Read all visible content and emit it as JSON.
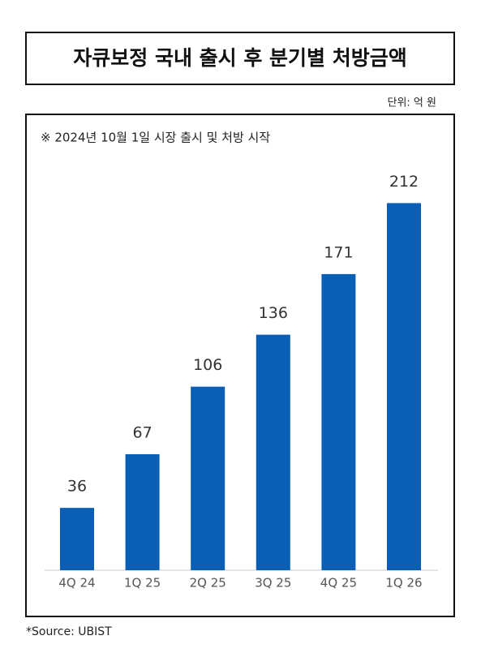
{
  "chart_data": {
    "type": "bar",
    "title": "자큐보정 국내 출시 후 분기별 처방금액",
    "unit": "단위: 억 원",
    "note": "※ 2024년 10월 1일 시장 출시 및 처방 시작",
    "source": "*Source: UBIST",
    "categories": [
      "4Q 24",
      "1Q 25",
      "2Q 25",
      "3Q 25",
      "4Q 25",
      "1Q 26"
    ],
    "values": [
      36,
      67,
      106,
      136,
      171,
      212
    ],
    "color": "#0a5fb4"
  }
}
